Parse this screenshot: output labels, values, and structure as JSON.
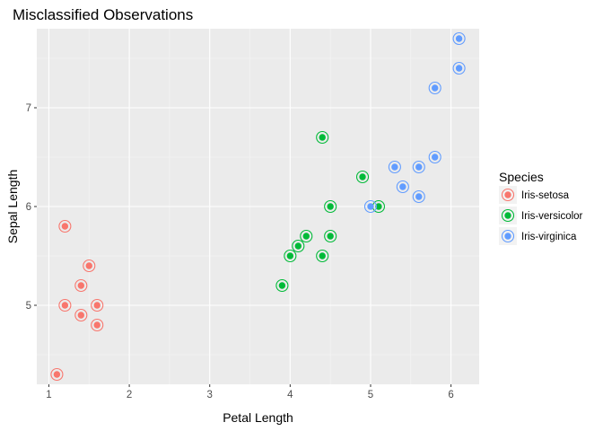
{
  "chart_data": {
    "type": "scatter",
    "title": "Misclassified Observations",
    "xlabel": "Petal Length",
    "ylabel": "Sepal Length",
    "xlim": [
      0.85,
      6.35
    ],
    "ylim": [
      4.2,
      7.8
    ],
    "x_ticks": [
      1,
      2,
      3,
      4,
      5,
      6
    ],
    "y_ticks": [
      5,
      6,
      7
    ],
    "grid": true,
    "legend": {
      "title": "Species",
      "position": "right"
    },
    "series": [
      {
        "name": "Iris-setosa",
        "color": "#F8766D",
        "x": [
          1.1,
          1.2,
          1.2,
          1.4,
          1.4,
          1.5,
          1.6,
          1.6
        ],
        "y": [
          4.3,
          5.8,
          5.0,
          4.9,
          5.2,
          5.4,
          5.0,
          4.8
        ]
      },
      {
        "name": "Iris-versicolor",
        "color": "#00BA38",
        "x": [
          3.9,
          4.0,
          4.1,
          4.2,
          4.4,
          4.4,
          4.5,
          4.5,
          4.9,
          5.1
        ],
        "y": [
          5.2,
          5.5,
          5.6,
          5.7,
          5.5,
          6.7,
          5.7,
          6.0,
          6.3,
          6.0
        ]
      },
      {
        "name": "Iris-virginica",
        "color": "#619CFF",
        "x": [
          5.0,
          5.3,
          5.4,
          5.6,
          5.6,
          5.8,
          5.8,
          6.1,
          6.1
        ],
        "y": [
          6.0,
          6.4,
          6.2,
          6.1,
          6.4,
          6.5,
          7.2,
          7.4,
          7.7
        ]
      }
    ]
  }
}
